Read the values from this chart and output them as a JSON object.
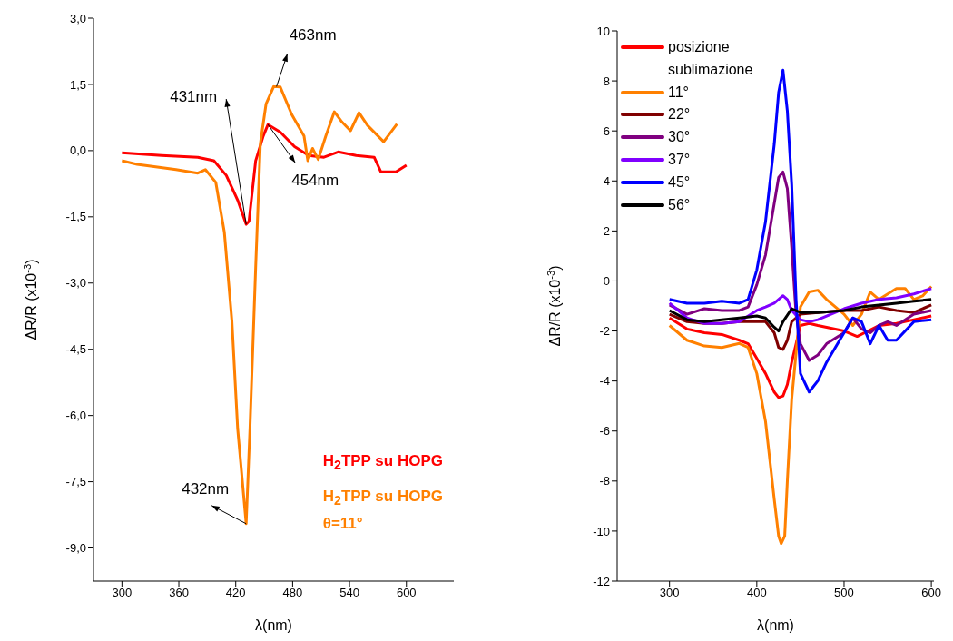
{
  "chart_data": [
    {
      "type": "line",
      "xlabel": "λ(nm)",
      "ylabel": "ΔR/R (x10$^{-3}$)",
      "xlim": [
        270,
        650
      ],
      "xticks": [
        300,
        360,
        420,
        480,
        540,
        600
      ],
      "ylim": [
        -9.75,
        3
      ],
      "yticks": [
        {
          "value": -9,
          "label": "-9,0"
        },
        {
          "value": -7.5,
          "label": "-7,5"
        },
        {
          "value": -6,
          "label": "-6,0"
        },
        {
          "value": -4.5,
          "label": "-4,5"
        },
        {
          "value": -3,
          "label": "-3,0"
        },
        {
          "value": -1.5,
          "label": "-1,5"
        },
        {
          "value": 0,
          "label": "0,0"
        },
        {
          "value": 1.5,
          "label": "1,5"
        },
        {
          "value": 3,
          "label": "3,0"
        }
      ],
      "legend": "bottom right",
      "line_style": "solid",
      "series": [
        {
          "name": "H$_{2}$TPP su HOPG",
          "color": "#ff0000",
          "x": [
            300,
            342,
            380,
            397,
            410,
            422,
            431,
            434,
            441,
            449,
            454,
            467,
            482,
            497,
            513,
            528,
            547,
            566,
            573,
            589,
            600
          ],
          "values": [
            -0.05,
            -0.11,
            -0.15,
            -0.23,
            -0.56,
            -1.12,
            -1.67,
            -1.6,
            -0.23,
            0.33,
            0.59,
            0.42,
            0.09,
            -0.11,
            -0.15,
            -0.03,
            -0.11,
            -0.15,
            -0.48,
            -0.48,
            -0.33
          ]
        },
        {
          "name": "H$_{2}$TPP su HOPG\nθ=11°",
          "color": "#ff8000",
          "x": [
            300,
            316,
            357,
            380,
            388,
            399,
            408,
            416,
            422,
            431,
            435,
            441,
            446,
            452,
            460,
            467,
            479,
            492,
            496,
            501,
            507,
            515,
            524,
            532,
            541,
            550,
            559,
            576,
            590
          ],
          "values": [
            -0.23,
            -0.31,
            -0.43,
            -0.51,
            -0.43,
            -0.72,
            -1.85,
            -3.87,
            -6.29,
            -8.45,
            -6.29,
            -2.66,
            0.17,
            1.06,
            1.45,
            1.44,
            0.82,
            0.33,
            -0.23,
            0.05,
            -0.2,
            0.33,
            0.88,
            0.65,
            0.45,
            0.86,
            0.57,
            0.2,
            0.6
          ]
        }
      ],
      "annotations": [
        {
          "text": "431nm",
          "x": 431,
          "y": -1.67
        },
        {
          "text": "463nm",
          "x": 463,
          "y": 1.45
        },
        {
          "text": "454nm",
          "x": 454,
          "y": 0.59
        },
        {
          "text": "432nm",
          "x": 431,
          "y": -8.45
        }
      ]
    },
    {
      "type": "line",
      "xlabel": "λ(nm)",
      "ylabel": "ΔR/R (x10$^{-3}$)",
      "xlim": [
        240,
        603
      ],
      "xticks": [
        300,
        400,
        500,
        600
      ],
      "ylim": [
        -12,
        10
      ],
      "yticks": [
        -12,
        -10,
        -8,
        -6,
        -4,
        -2,
        0,
        2,
        4,
        6,
        8,
        10
      ],
      "legend": "top left",
      "line_style": "solid",
      "series": [
        {
          "name": "posizione sublimazione",
          "color": "#ff0000",
          "x": [
            300,
            320,
            340,
            360,
            380,
            390,
            400,
            410,
            420,
            425,
            430,
            435,
            440,
            450,
            460,
            470,
            480,
            500,
            515,
            540,
            560,
            580,
            600
          ],
          "values": [
            -1.48,
            -1.92,
            -2.07,
            -2.14,
            -2.37,
            -2.51,
            -3.1,
            -3.7,
            -4.44,
            -4.66,
            -4.6,
            -4.14,
            -3.25,
            -1.78,
            -1.7,
            -1.78,
            -1.85,
            -2.0,
            -2.22,
            -1.78,
            -1.7,
            -1.55,
            -1.4
          ]
        },
        {
          "name": "11°",
          "color": "#ff8000",
          "x": [
            300,
            320,
            340,
            360,
            380,
            390,
            400,
            410,
            420,
            425,
            428,
            432,
            435,
            440,
            450,
            460,
            470,
            480,
            500,
            510,
            520,
            530,
            540,
            560,
            570,
            580,
            590,
            600
          ],
          "values": [
            -1.78,
            -2.37,
            -2.6,
            -2.66,
            -2.5,
            -2.66,
            -3.7,
            -5.62,
            -8.73,
            -10.2,
            -10.5,
            -10.2,
            -8.0,
            -4.73,
            -1.04,
            -0.44,
            -0.37,
            -0.74,
            -1.33,
            -1.78,
            -1.33,
            -0.44,
            -0.74,
            -0.3,
            -0.3,
            -0.74,
            -0.6,
            -0.22
          ]
        },
        {
          "name": "22°",
          "color": "#800000",
          "x": [
            300,
            320,
            340,
            360,
            380,
            400,
            410,
            420,
            425,
            430,
            435,
            440,
            450,
            470,
            500,
            520,
            540,
            560,
            580,
            600
          ],
          "values": [
            -1.33,
            -1.63,
            -1.7,
            -1.7,
            -1.63,
            -1.63,
            -1.63,
            -2.07,
            -2.66,
            -2.74,
            -2.37,
            -1.63,
            -1.33,
            -1.26,
            -1.18,
            -1.18,
            -1.04,
            -1.18,
            -1.26,
            -0.96
          ]
        },
        {
          "name": "30°",
          "color": "#800080",
          "x": [
            300,
            320,
            340,
            360,
            380,
            390,
            400,
            410,
            420,
            425,
            430,
            435,
            440,
            445,
            450,
            460,
            470,
            480,
            500,
            510,
            520,
            530,
            540,
            550,
            560,
            580,
            600
          ],
          "values": [
            -0.96,
            -1.33,
            -1.11,
            -1.18,
            -1.18,
            -1.04,
            -0.15,
            1.04,
            3.1,
            4.14,
            4.36,
            3.7,
            1.33,
            -1.33,
            -2.51,
            -3.18,
            -2.96,
            -2.51,
            -2.07,
            -1.48,
            -1.92,
            -2.07,
            -1.78,
            -1.63,
            -1.78,
            -1.33,
            -1.18
          ]
        },
        {
          "name": "37°",
          "color": "#8000ff",
          "x": [
            300,
            320,
            340,
            360,
            380,
            400,
            410,
            420,
            430,
            435,
            440,
            450,
            460,
            470,
            480,
            500,
            520,
            540,
            560,
            580,
            600
          ],
          "values": [
            -0.89,
            -1.48,
            -1.7,
            -1.7,
            -1.63,
            -1.18,
            -1.04,
            -0.89,
            -0.59,
            -0.74,
            -1.18,
            -1.55,
            -1.63,
            -1.55,
            -1.4,
            -1.11,
            -0.89,
            -0.74,
            -0.67,
            -0.52,
            -0.3
          ]
        },
        {
          "name": "45°",
          "color": "#0000ff",
          "x": [
            300,
            320,
            340,
            360,
            380,
            390,
            400,
            410,
            420,
            425,
            430,
            435,
            440,
            445,
            450,
            460,
            470,
            480,
            500,
            510,
            520,
            530,
            540,
            550,
            560,
            580,
            600
          ],
          "values": [
            -0.74,
            -0.89,
            -0.89,
            -0.81,
            -0.89,
            -0.74,
            0.44,
            2.37,
            5.47,
            7.54,
            8.43,
            6.8,
            3.85,
            -0.74,
            -3.7,
            -4.44,
            -3.99,
            -3.25,
            -2.07,
            -1.48,
            -1.63,
            -2.51,
            -1.78,
            -2.37,
            -2.37,
            -1.63,
            -1.55
          ]
        },
        {
          "name": "56°",
          "color": "#000000",
          "x": [
            300,
            320,
            340,
            360,
            380,
            400,
            410,
            420,
            425,
            430,
            440,
            450,
            470,
            500,
            520,
            540,
            560,
            580,
            600
          ],
          "values": [
            -1.18,
            -1.55,
            -1.63,
            -1.55,
            -1.48,
            -1.4,
            -1.48,
            -1.85,
            -2.0,
            -1.63,
            -1.11,
            -1.26,
            -1.26,
            -1.18,
            -1.04,
            -0.96,
            -0.89,
            -0.81,
            -0.74
          ]
        }
      ]
    }
  ]
}
